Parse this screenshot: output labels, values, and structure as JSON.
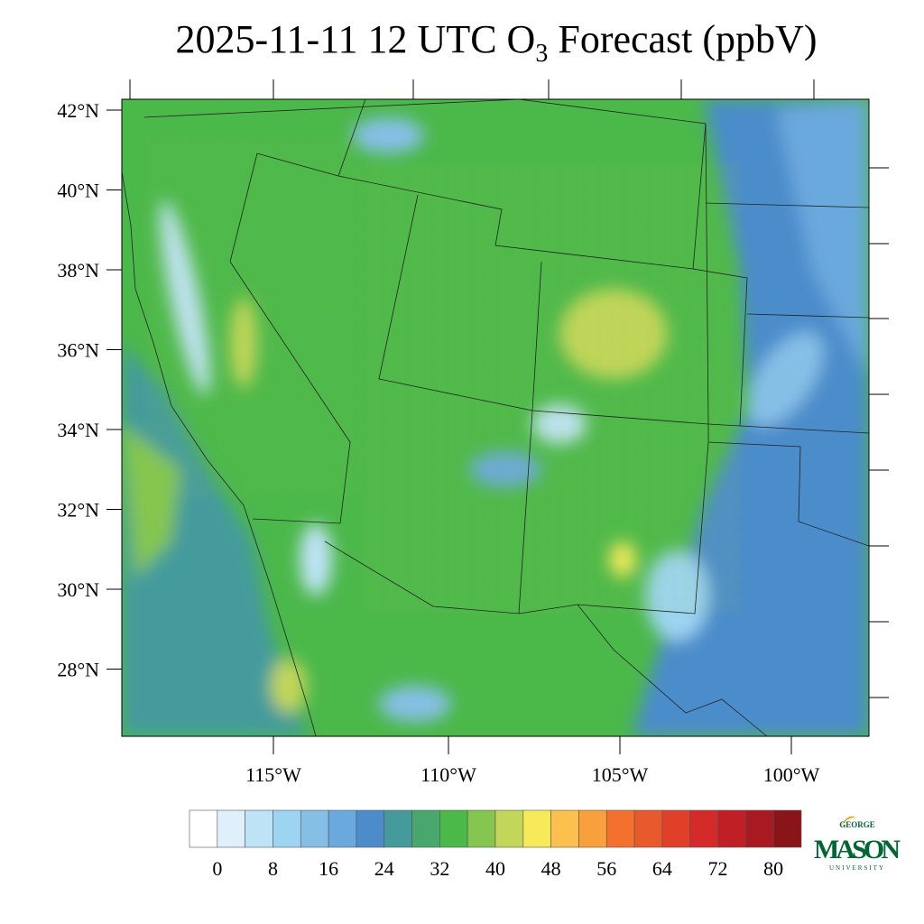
{
  "header": {
    "title": {
      "text": "2025-11-11 12 UTC O",
      "subscript": "3",
      "rest": " Forecast (ppbV)"
    }
  },
  "map": {
    "lat_labels": [
      "42°N",
      "40°N",
      "38°N",
      "36°N",
      "34°N",
      "32°N",
      "30°N",
      "28°N"
    ],
    "lon_labels": [
      "115°W",
      "110°W",
      "105°W",
      "100°W"
    ]
  },
  "colorbar": {
    "labels": [
      0,
      8,
      16,
      24,
      32,
      40,
      48,
      56,
      64,
      72,
      80
    ],
    "colors": [
      "#ffffff",
      "#dff0fa",
      "#bfe3f6",
      "#9dd4f2",
      "#86bfe6",
      "#6aa9dd",
      "#4c8ccb",
      "#459b9c",
      "#48a76c",
      "#4bb84a",
      "#85c650",
      "#c2d65a",
      "#f6ea5a",
      "#fbc04e",
      "#f8a03c",
      "#f3712d",
      "#e85a2b",
      "#e0402a",
      "#d42a2a",
      "#c01f26",
      "#a81a20",
      "#8a1518"
    ]
  },
  "logo": {
    "top": "GEORGE",
    "name": "MASON",
    "bottom": "UNIVERSITY"
  }
}
